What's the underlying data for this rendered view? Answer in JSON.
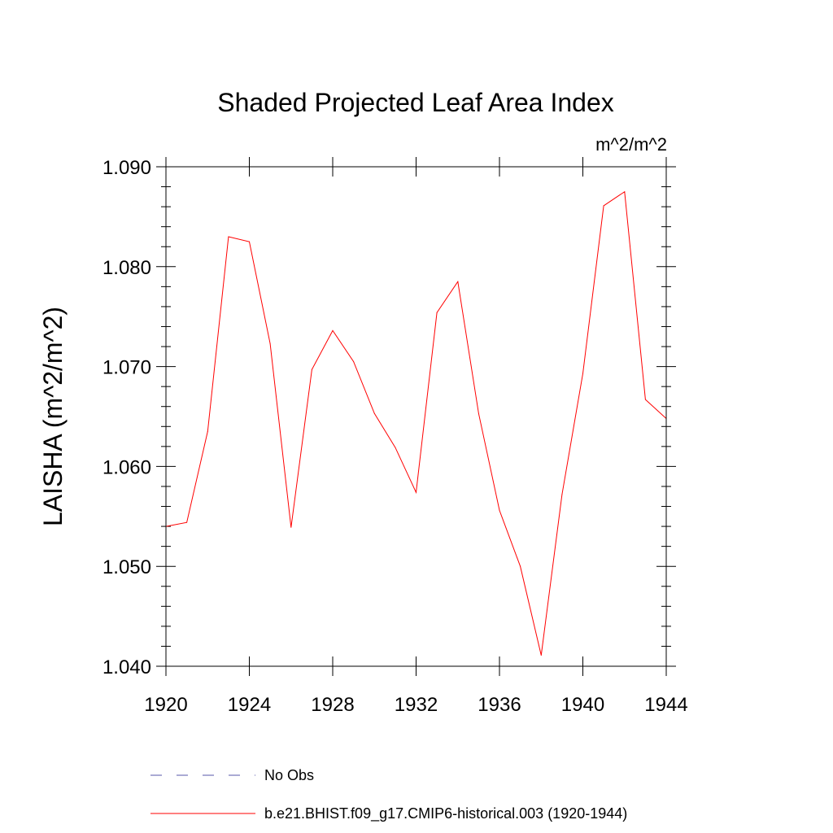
{
  "chart_data": {
    "type": "line",
    "title": "Shaded Projected Leaf Area Index",
    "units": "m^2/m^2",
    "ylabel": "LAISHA  (m^2/m^2)",
    "xlabel": "",
    "xlim": [
      1920,
      1944
    ],
    "ylim": [
      1.04,
      1.09
    ],
    "xticks": [
      1920,
      1924,
      1928,
      1932,
      1936,
      1940,
      1944
    ],
    "yticks": [
      1.04,
      1.05,
      1.06,
      1.07,
      1.08,
      1.09
    ],
    "ytick_labels": [
      "1.040",
      "1.050",
      "1.060",
      "1.070",
      "1.080",
      "1.090"
    ],
    "series": [
      {
        "name": "b.e21.BHIST.f09_g17.CMIP6-historical.003 (1920-1944)",
        "color": "#ff0000",
        "dash": "solid",
        "x": [
          1920,
          1921,
          1922,
          1923,
          1924,
          1925,
          1926,
          1927,
          1928,
          1929,
          1930,
          1931,
          1932,
          1933,
          1934,
          1935,
          1936,
          1937,
          1938,
          1939,
          1940,
          1941,
          1942,
          1943,
          1944
        ],
        "values": [
          1.054,
          1.0544,
          1.0635,
          1.083,
          1.0825,
          1.0723,
          1.0539,
          1.0697,
          1.0736,
          1.0705,
          1.0653,
          1.0619,
          1.0574,
          1.0754,
          1.0785,
          1.0653,
          1.0556,
          1.05,
          1.0411,
          1.0572,
          1.0693,
          1.0861,
          1.0875,
          1.0667,
          1.0648
        ]
      }
    ],
    "legend": [
      {
        "label": "No Obs",
        "color": "#5555aa",
        "dash": "dashed"
      },
      {
        "label": "b.e21.BHIST.f09_g17.CMIP6-historical.003 (1920-1944)",
        "color": "#ff0000",
        "dash": "solid"
      }
    ]
  }
}
